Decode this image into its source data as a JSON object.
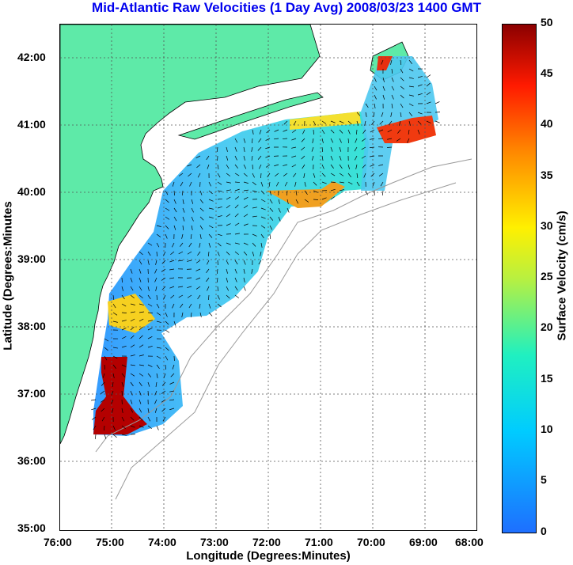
{
  "title": "Mid-Atlantic Raw Velocities (1 Day Avg) 2008/03/23 1400 GMT",
  "xlabel": "Longitude (Degrees:Minutes)",
  "ylabel": "Latitude (Degrees:Minutes",
  "colorbar": {
    "label": "Surface Velocity (cm/s)",
    "ticks": [
      "50",
      "45",
      "40",
      "35",
      "30",
      "25",
      "20",
      "15",
      "10",
      "5",
      "0"
    ],
    "range": [
      0,
      50
    ],
    "colormap": "jet"
  },
  "colors": {
    "land": "#5eeaa8",
    "title": "#0000ee",
    "grid": "#555555",
    "bathymetry": "#999999"
  },
  "chart_data": {
    "type": "heatmap",
    "x_ticks": [
      "76:00",
      "75:00",
      "74:00",
      "73:00",
      "72:00",
      "71:00",
      "70:00",
      "69:00",
      "68:00"
    ],
    "y_ticks": [
      "42:00",
      "41:00",
      "40:00",
      "39:00",
      "38:00",
      "37:00",
      "36:00",
      "35:00"
    ],
    "xlim": [
      -76,
      -68
    ],
    "ylim": [
      35,
      42.5
    ],
    "grid": true
  }
}
